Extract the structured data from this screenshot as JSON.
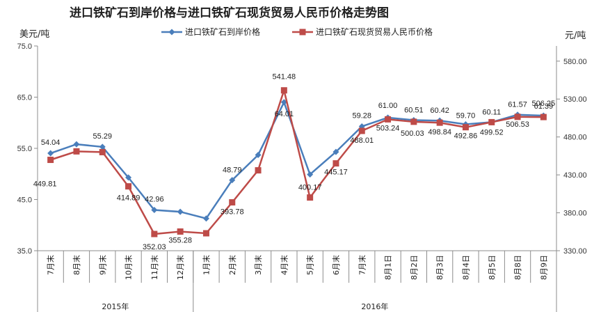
{
  "chart_data": {
    "type": "line",
    "title": "进口铁矿石到岸价格与进口铁矿石现货贸易人民币价格走势图",
    "y_left_unit": "美元/吨",
    "y_right_unit": "元/吨",
    "categories": [
      "7月末",
      "8月末",
      "9月末",
      "10月末",
      "11月末",
      "12月末",
      "1月末",
      "2月末",
      "3月末",
      "4月末",
      "5月末",
      "6月末",
      "7月末",
      "8月1日",
      "8月2日",
      "8月3日",
      "8月4日",
      "8月5日",
      "8月8日",
      "8月9日"
    ],
    "groups": [
      {
        "label": "2015年",
        "span": 6
      },
      {
        "label": "2016年",
        "span": 14
      }
    ],
    "y_left": {
      "ticks": [
        "35.0",
        "45.0",
        "55.0",
        "65.0",
        "75.0"
      ],
      "range": [
        35,
        75
      ]
    },
    "y_right": {
      "ticks": [
        "330.00",
        "380.00",
        "430.00",
        "480.00",
        "530.00",
        "580.00"
      ],
      "range": [
        330,
        600
      ]
    },
    "series": [
      {
        "name": "进口铁矿石到岸价格",
        "axis": "left",
        "color": "#4a7ebb",
        "marker": "diamond",
        "values": [
          54.04,
          55.8,
          55.29,
          49.3,
          42.96,
          42.6,
          41.3,
          48.79,
          53.7,
          64.01,
          49.9,
          54.3,
          59.28,
          61.0,
          60.51,
          60.42,
          59.7,
          60.11,
          61.57,
          61.39
        ],
        "labels": [
          "54.04",
          "",
          "55.29",
          "",
          "42.96",
          "",
          "",
          "48.79",
          "",
          "64.01",
          "",
          "",
          "59.28",
          "61.00",
          "60.51",
          "60.42",
          "59.70",
          "60.11",
          "61.57",
          "61.39"
        ]
      },
      {
        "name": "进口铁矿石现货贸易人民币价格",
        "axis": "right",
        "color": "#be4b48",
        "marker": "square",
        "values": [
          449.81,
          461.0,
          460.0,
          414.89,
          352.03,
          355.28,
          353.0,
          393.78,
          436.0,
          541.48,
          400.17,
          445.17,
          488.01,
          503.24,
          500.03,
          498.84,
          492.86,
          499.52,
          506.53,
          506.25
        ],
        "labels": [
          "449.81",
          "",
          "",
          "414.89",
          "352.03",
          "355.28",
          "",
          "393.78",
          "",
          "541.48",
          "400.17",
          "445.17",
          "488.01",
          "503.24",
          "500.03",
          "498.84",
          "492.86",
          "499.52",
          "506.53",
          "506.25"
        ]
      }
    ]
  }
}
